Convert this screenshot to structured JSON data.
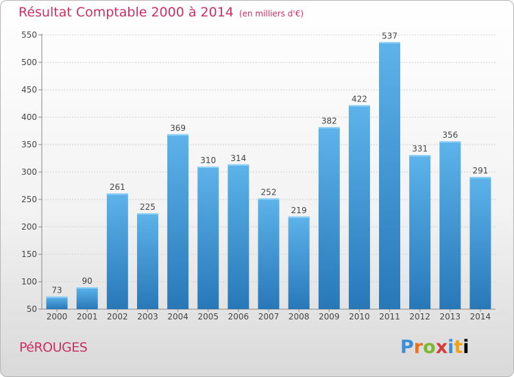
{
  "header": {
    "title": "Résultat Comptable 2000 à 2014",
    "subtitle": "(en milliers d'€)"
  },
  "commune": "PéROUGES",
  "logo": {
    "text": "Proxiti"
  },
  "colors": {
    "accent": "#cc2f62",
    "bar_top": "#5db3ea",
    "bar_bottom": "#2878b8"
  },
  "chart_data": {
    "type": "bar",
    "title": "Résultat Comptable 2000 à 2014",
    "subtitle": "(en milliers d'€)",
    "xlabel": "",
    "ylabel": "",
    "categories": [
      "2000",
      "2001",
      "2002",
      "2003",
      "2004",
      "2005",
      "2006",
      "2007",
      "2008",
      "2009",
      "2010",
      "2011",
      "2012",
      "2013",
      "2014"
    ],
    "values": [
      73,
      90,
      261,
      225,
      369,
      310,
      314,
      252,
      219,
      382,
      422,
      537,
      331,
      356,
      291
    ],
    "ylim": [
      50,
      550
    ],
    "yticks": [
      50,
      100,
      150,
      200,
      250,
      300,
      350,
      400,
      450,
      500,
      550
    ],
    "grid": true,
    "legend": "none"
  }
}
